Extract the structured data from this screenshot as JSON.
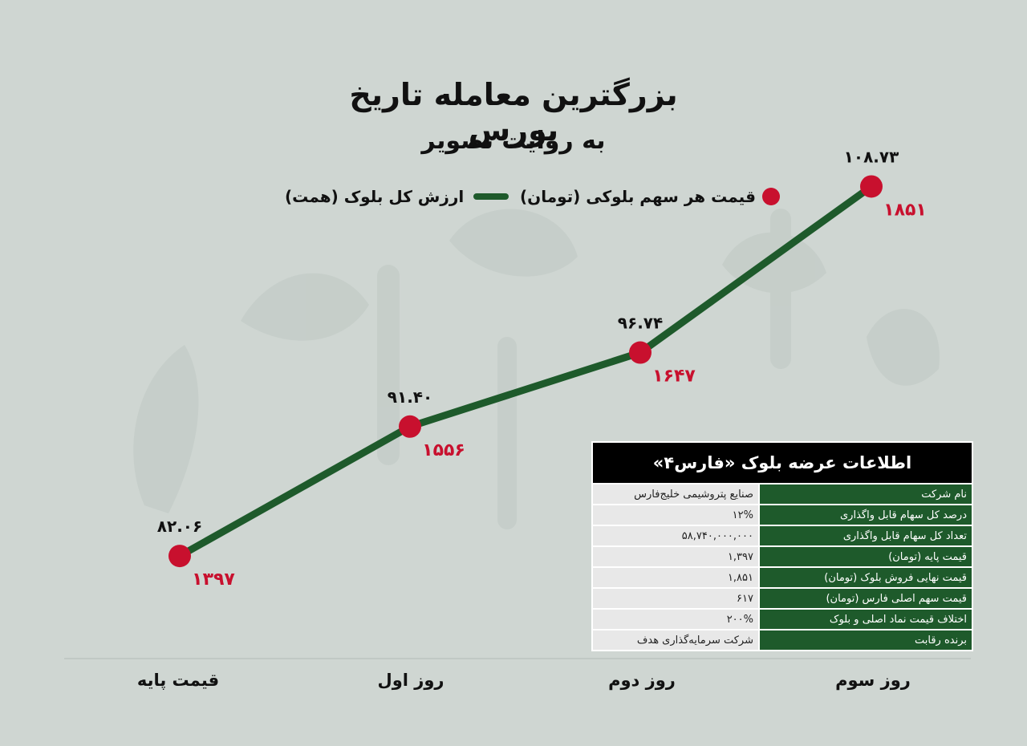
{
  "title": "بزرگترین معامله تاریخ بورس",
  "subtitle": "به روایت تصویر",
  "legend": {
    "price_label": "قیمت هر سهم بلوکی (تومان)",
    "value_label": "ارزش کل بلوک (همت)"
  },
  "colors": {
    "line": "#1e5a2b",
    "point": "#c8102e",
    "background": "#cfd6d2"
  },
  "chart_data": {
    "type": "line",
    "categories": [
      "قیمت پایه",
      "روز اول",
      "روز دوم",
      "روز سوم"
    ],
    "series": [
      {
        "name": "ارزش کل بلوک (همت)",
        "values": [
          82.06,
          91.4,
          96.74,
          108.73
        ],
        "labels": [
          "۸۲.۰۶",
          "۹۱.۴۰",
          "۹۶.۷۴",
          "۱۰۸.۷۳"
        ]
      },
      {
        "name": "قیمت هر سهم بلوکی (تومان)",
        "values": [
          1397,
          1556,
          1647,
          1851
        ],
        "labels": [
          "۱۳۹۷",
          "۱۵۵۶",
          "۱۶۴۷",
          "۱۸۵۱"
        ]
      }
    ],
    "ylim": [
      75,
      112
    ]
  },
  "info_table": {
    "title": "اطلاعات عرضه بلوک «فارس۴»",
    "rows": [
      {
        "key": "نام شرکت",
        "value": "صنایع پتروشیمی خلیج‌فارس"
      },
      {
        "key": "درصد کل سهام قابل واگذاری",
        "value": "۱۲%"
      },
      {
        "key": "تعداد کل سهام قابل واگذاری",
        "value": "۵۸,۷۴۰,۰۰۰,۰۰۰"
      },
      {
        "key": "قیمت پایه (تومان)",
        "value": "۱,۳۹۷"
      },
      {
        "key": "قیمت نهایی فروش بلوک (تومان)",
        "value": "۱,۸۵۱"
      },
      {
        "key": "قیمت سهم اصلی فارس (تومان)",
        "value": "۶۱۷"
      },
      {
        "key": "اختلاف قیمت نماد اصلی و بلوک",
        "value": "۲۰۰%"
      },
      {
        "key": "برنده رقابت",
        "value": "شرکت سرمایه‌گذاری هدف"
      }
    ]
  }
}
